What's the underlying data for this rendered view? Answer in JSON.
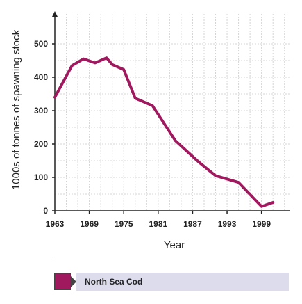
{
  "chart_data": {
    "type": "line",
    "title": "",
    "xlabel": "Year",
    "ylabel": "1000s of tonnes of spawning stock",
    "xlim": [
      1963,
      2004
    ],
    "ylim": [
      0,
      500
    ],
    "x_ticks": [
      1963,
      1969,
      1975,
      1981,
      1987,
      1993,
      1999
    ],
    "y_ticks": [
      0,
      100,
      200,
      300,
      400,
      500
    ],
    "grid": true,
    "legend_position": "bottom",
    "series": [
      {
        "name": "North Sea Cod",
        "color": "#a0195f",
        "points": [
          [
            1963,
            340
          ],
          [
            1966,
            435
          ],
          [
            1968,
            455
          ],
          [
            1970,
            443
          ],
          [
            1972,
            458
          ],
          [
            1973,
            438
          ],
          [
            1975,
            423
          ],
          [
            1977,
            337
          ],
          [
            1980,
            315
          ],
          [
            1984,
            210
          ],
          [
            1988,
            147
          ],
          [
            1991,
            105
          ],
          [
            1995,
            85
          ],
          [
            1999,
            13
          ],
          [
            2001,
            25
          ]
        ]
      }
    ]
  }
}
